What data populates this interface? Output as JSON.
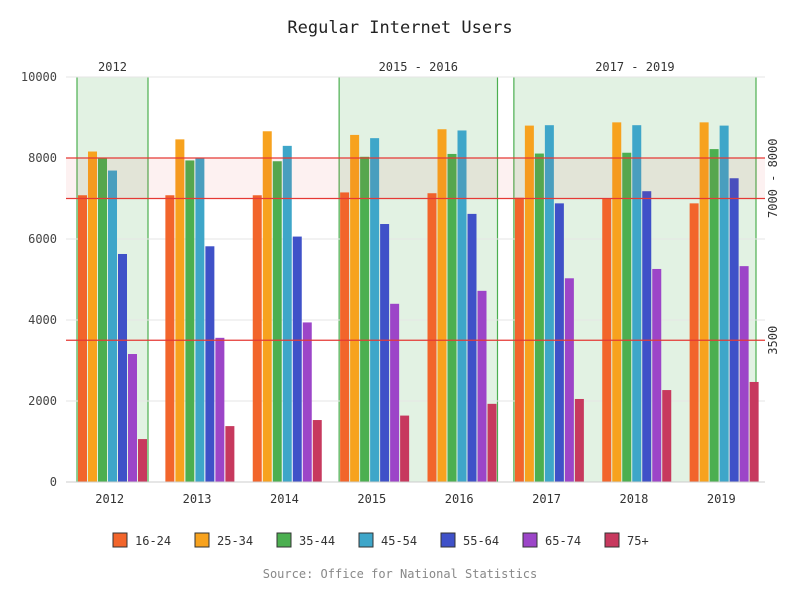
{
  "chart_data": {
    "type": "bar",
    "title": "Regular Internet Users",
    "source": "Source: Office for National Statistics",
    "ylim": [
      0,
      10000
    ],
    "yticks": [
      0,
      2000,
      4000,
      6000,
      8000,
      10000
    ],
    "grid": true,
    "legend_position": "bottom",
    "categories": [
      "2012",
      "2013",
      "2014",
      "2015",
      "2016",
      "2017",
      "2018",
      "2019"
    ],
    "series": [
      {
        "name": "16-24",
        "color": "#f2652b",
        "values": [
          7080,
          7080,
          7080,
          7150,
          7130,
          7020,
          7000,
          6880
        ]
      },
      {
        "name": "25-34",
        "color": "#f7a21e",
        "values": [
          8160,
          8460,
          8660,
          8570,
          8710,
          8800,
          8880,
          8880
        ]
      },
      {
        "name": "35-44",
        "color": "#4caf50",
        "values": [
          7990,
          7940,
          7920,
          8030,
          8100,
          8110,
          8130,
          8220
        ]
      },
      {
        "name": "45-54",
        "color": "#3ea6c9",
        "values": [
          7690,
          8010,
          8300,
          8490,
          8680,
          8810,
          8810,
          8800
        ]
      },
      {
        "name": "55-64",
        "color": "#3f51c8",
        "values": [
          5630,
          5820,
          6060,
          6370,
          6620,
          6880,
          7180,
          7500
        ]
      },
      {
        "name": "65-74",
        "color": "#9c45c8",
        "values": [
          3160,
          3560,
          3940,
          4400,
          4720,
          5030,
          5260,
          5330
        ]
      },
      {
        "name": "75+",
        "color": "#c7395e",
        "values": [
          1060,
          1380,
          1530,
          1640,
          1930,
          2050,
          2270,
          2470
        ]
      }
    ],
    "annotations": {
      "bands": [
        {
          "label": "2012",
          "from_category": "2012",
          "to_category": "2012",
          "color": "#4caf50"
        },
        {
          "label": "2015 - 2016",
          "from_category": "2015",
          "to_category": "2016",
          "color": "#4caf50"
        },
        {
          "label": "2017 - 2019",
          "from_category": "2017",
          "to_category": "2019",
          "color": "#4caf50"
        }
      ],
      "y_range": {
        "label": "7000 - 8000",
        "from": 7000,
        "to": 8000,
        "color": "#e53935"
      },
      "y_line": {
        "label": "3500",
        "value": 3500,
        "color": "#e53935"
      }
    }
  }
}
